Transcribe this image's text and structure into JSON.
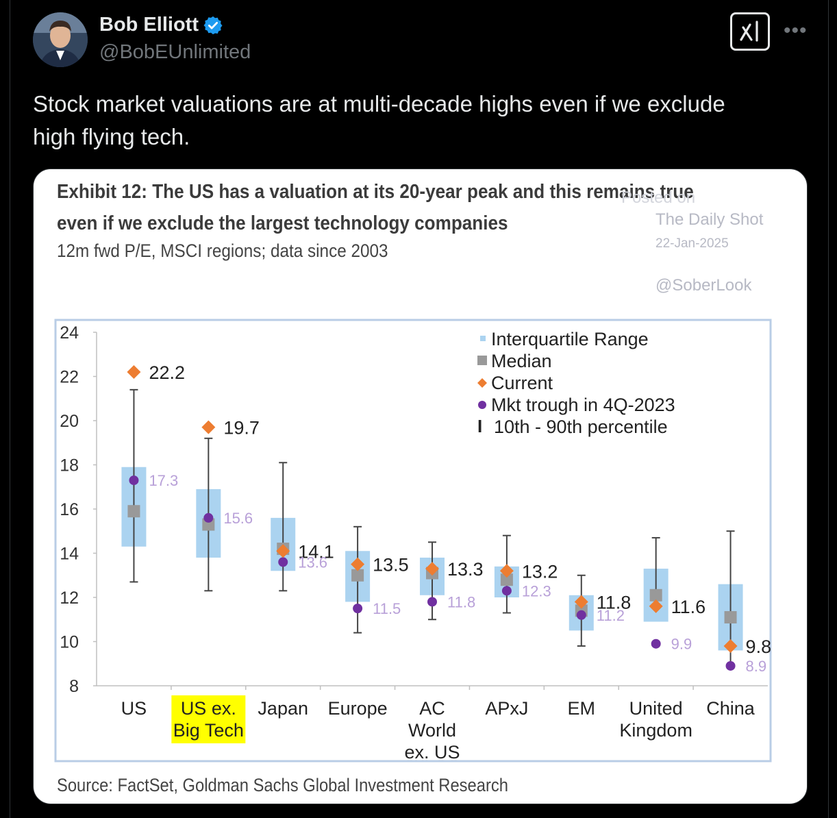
{
  "tweet": {
    "author_name": "Bob Elliott",
    "handle": "@BobEUnlimited",
    "text_line1": "Stock market valuations are at multi-decade highs even if we exclude",
    "text_line2": "high flying tech."
  },
  "icons": {
    "verified": "verified-badge-icon",
    "grok": "grok-icon",
    "more": "more-icon"
  },
  "colors": {
    "background": "#000000",
    "verified": "#1d9bf0",
    "iqr": "#abd3f0",
    "median": "#999999",
    "current": "#ed7d31",
    "trough": "#7030a0",
    "highlight": "#ffff00"
  },
  "exhibit": {
    "title_line1": "Exhibit 12: The US has a valuation at its 20-year peak and this remains true",
    "title_line2": "even if we exclude the largest technology companies",
    "subtitle": "12m fwd P/E, MSCI regions; data since 2003",
    "source": "Source: FactSet, Goldman Sachs Global Investment Research"
  },
  "watermark": {
    "posted_on": "Posted on",
    "site": "The Daily Shot",
    "date": "22-Jan-2025",
    "handle": "@SoberLook"
  },
  "chart_data": {
    "type": "box",
    "ylim": [
      8,
      24
    ],
    "yticks": [
      "8",
      "10",
      "12",
      "14",
      "16",
      "18",
      "20",
      "22",
      "24"
    ],
    "legend": {
      "iqr": "Interquartile Range",
      "median": "Median",
      "current": "Current",
      "trough": "Mkt trough in 4Q-2023",
      "whisker": "10th - 90th percentile",
      "whisker_glyph": "I"
    },
    "categories": [
      {
        "label": [
          "US"
        ],
        "highlight": false,
        "p10": 12.7,
        "q1": 14.3,
        "median": 15.9,
        "q3": 17.9,
        "p90": 21.4,
        "current": 22.2,
        "current_label": "22.2",
        "trough": 17.3,
        "trough_label": "17.3"
      },
      {
        "label": [
          "US ex.",
          "Big Tech"
        ],
        "highlight": true,
        "p10": 12.3,
        "q1": 13.8,
        "median": 15.3,
        "q3": 16.9,
        "p90": 19.2,
        "current": 19.7,
        "current_label": "19.7",
        "trough": 15.6,
        "trough_label": "15.6"
      },
      {
        "label": [
          "Japan"
        ],
        "highlight": false,
        "p10": 12.3,
        "q1": 13.2,
        "median": 14.2,
        "q3": 15.6,
        "p90": 18.1,
        "current": 14.1,
        "current_label": "14.1",
        "trough": 13.6,
        "trough_label": "13.6"
      },
      {
        "label": [
          "Europe"
        ],
        "highlight": false,
        "p10": 10.4,
        "q1": 11.8,
        "median": 13.0,
        "q3": 14.1,
        "p90": 15.2,
        "current": 13.5,
        "current_label": "13.5",
        "trough": 11.5,
        "trough_label": "11.5"
      },
      {
        "label": [
          "AC",
          "World",
          "ex. US"
        ],
        "highlight": false,
        "p10": 11.0,
        "q1": 12.1,
        "median": 13.1,
        "q3": 13.8,
        "p90": 14.5,
        "current": 13.3,
        "current_label": "13.3",
        "trough": 11.8,
        "trough_label": "11.8"
      },
      {
        "label": [
          "APxJ"
        ],
        "highlight": false,
        "p10": 11.3,
        "q1": 12.0,
        "median": 12.8,
        "q3": 13.4,
        "p90": 14.8,
        "current": 13.2,
        "current_label": "13.2",
        "trough": 12.3,
        "trough_label": "12.3"
      },
      {
        "label": [
          "EM"
        ],
        "highlight": false,
        "p10": 9.8,
        "q1": 10.5,
        "median": 11.4,
        "q3": 12.1,
        "p90": 13.0,
        "current": 11.8,
        "current_label": "11.8",
        "trough": 11.2,
        "trough_label": "11.2"
      },
      {
        "label": [
          "United",
          "Kingdom"
        ],
        "highlight": false,
        "p10": 11.9,
        "q1": 10.9,
        "median": 12.1,
        "q3": 13.3,
        "p90": 14.7,
        "current": 11.6,
        "current_label": "11.6",
        "trough": 9.9,
        "trough_label": "9.9"
      },
      {
        "label": [
          "China"
        ],
        "highlight": false,
        "p10": 8.9,
        "q1": 9.6,
        "median": 11.1,
        "q3": 12.6,
        "p90": 15.0,
        "current": 9.8,
        "current_label": "9.8",
        "trough": 8.9,
        "trough_label": "8.9"
      }
    ]
  }
}
